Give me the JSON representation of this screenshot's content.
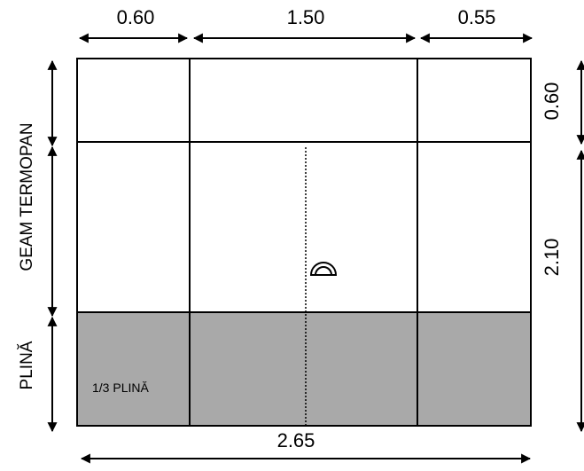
{
  "dimensions": {
    "top_left": "0.60",
    "top_middle": "1.50",
    "top_right": "0.55",
    "right_top": "0.60",
    "right_bottom": "2.10",
    "bottom_total": "2.65"
  },
  "labels": {
    "glass_zone": "GEAM TERMOPAN",
    "solid_zone": "PLINĂ",
    "solid_fraction": "1/3 PLINĂ"
  },
  "colors": {
    "line": "#000000",
    "panel_fill": "#a9a9a9"
  }
}
